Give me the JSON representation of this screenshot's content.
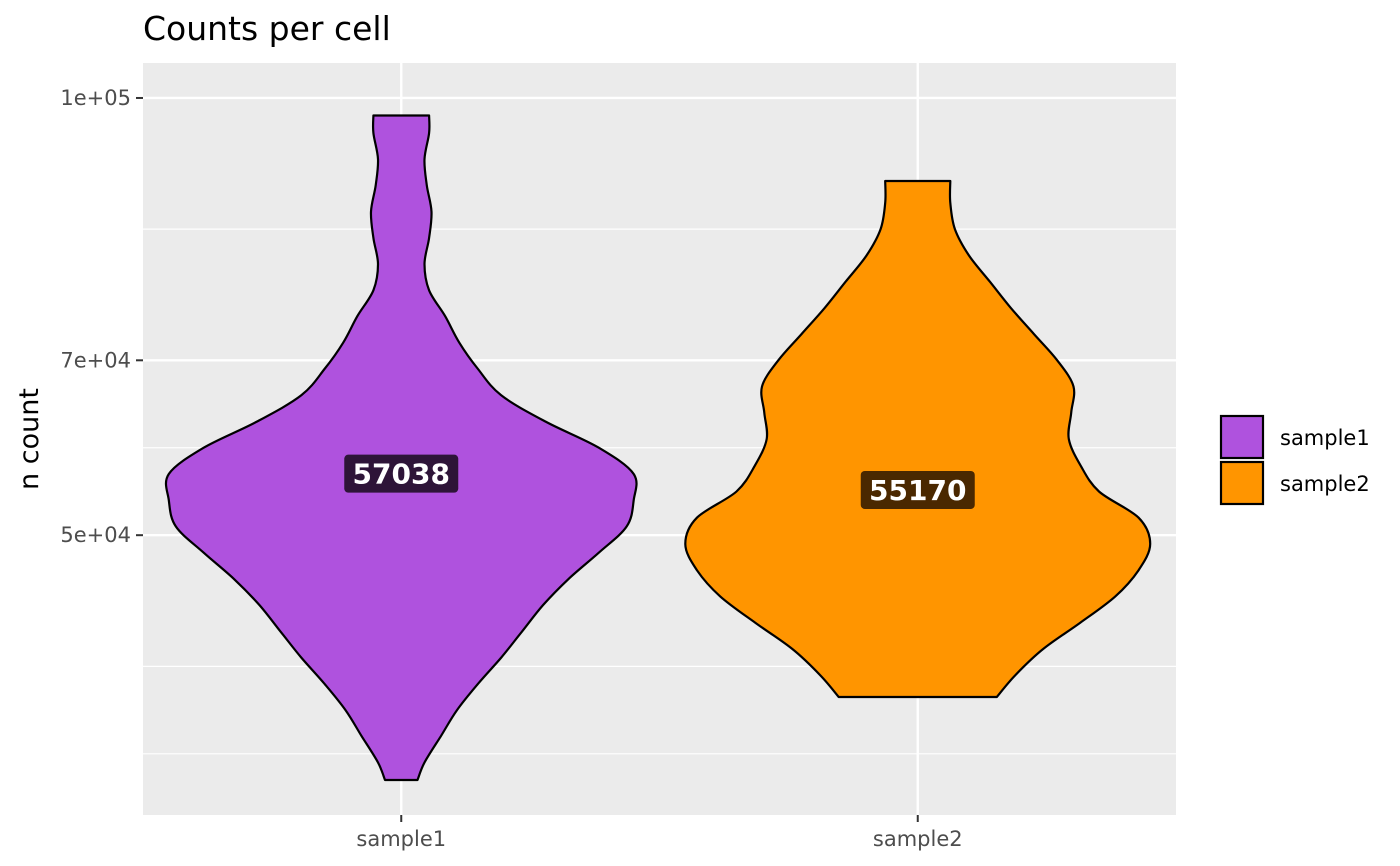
{
  "chart_data": {
    "type": "violin",
    "title": "Counts per cell",
    "xlabel": "",
    "ylabel": "n count",
    "ylim": [
      18000,
      104000
    ],
    "categories": [
      "sample1",
      "sample2"
    ],
    "y_ticks": [
      {
        "value": 50000,
        "label": "5e+04"
      },
      {
        "value": 70000,
        "label": "7e+04"
      },
      {
        "value": 100000,
        "label": "1e+05"
      }
    ],
    "y_minor_gridlines": [
      25000,
      35000,
      60000,
      85000
    ],
    "grid": true,
    "legend_position": "right",
    "legend": [
      {
        "name": "sample1",
        "color": "#AF52DE"
      },
      {
        "name": "sample2",
        "color": "#FF9500"
      }
    ],
    "series": [
      {
        "name": "sample1",
        "color": "#AF52DE",
        "label_bg": "#2E1438",
        "median": 57038,
        "median_label": "57038",
        "min": 22000,
        "max": 98000,
        "density": [
          [
            22000,
            0.07
          ],
          [
            24000,
            0.1
          ],
          [
            27000,
            0.17
          ],
          [
            30000,
            0.24
          ],
          [
            33000,
            0.33
          ],
          [
            36000,
            0.43
          ],
          [
            39000,
            0.52
          ],
          [
            42000,
            0.61
          ],
          [
            45000,
            0.72
          ],
          [
            48000,
            0.85
          ],
          [
            51000,
            0.97
          ],
          [
            54000,
            1.0
          ],
          [
            57000,
            1.0
          ],
          [
            60000,
            0.85
          ],
          [
            63000,
            0.62
          ],
          [
            66000,
            0.43
          ],
          [
            69000,
            0.33
          ],
          [
            72000,
            0.25
          ],
          [
            75000,
            0.19
          ],
          [
            78000,
            0.12
          ],
          [
            81000,
            0.1
          ],
          [
            84000,
            0.12
          ],
          [
            87000,
            0.13
          ],
          [
            90000,
            0.11
          ],
          [
            93000,
            0.1
          ],
          [
            96000,
            0.12
          ],
          [
            98000,
            0.12
          ]
        ]
      },
      {
        "name": "sample2",
        "color": "#FF9500",
        "label_bg": "#4A2800",
        "median": 55170,
        "median_label": "55170",
        "min": 31500,
        "max": 90500,
        "density": [
          [
            31500,
            0.34
          ],
          [
            34000,
            0.42
          ],
          [
            37000,
            0.54
          ],
          [
            40000,
            0.7
          ],
          [
            43000,
            0.85
          ],
          [
            46000,
            0.95
          ],
          [
            49000,
            1.0
          ],
          [
            52000,
            0.95
          ],
          [
            55000,
            0.78
          ],
          [
            58000,
            0.7
          ],
          [
            61000,
            0.65
          ],
          [
            64000,
            0.66
          ],
          [
            67000,
            0.67
          ],
          [
            70000,
            0.6
          ],
          [
            73000,
            0.5
          ],
          [
            76000,
            0.4
          ],
          [
            79000,
            0.31
          ],
          [
            82000,
            0.22
          ],
          [
            85000,
            0.16
          ],
          [
            88000,
            0.14
          ],
          [
            90500,
            0.14
          ]
        ]
      }
    ]
  }
}
